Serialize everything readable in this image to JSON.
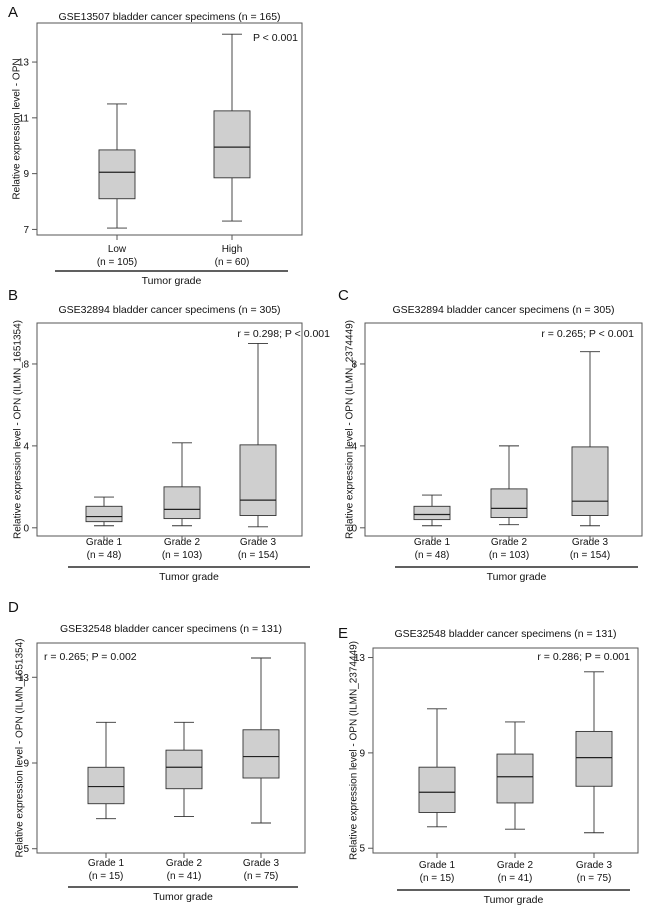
{
  "chart_data": [
    {
      "panel": "A",
      "type": "box",
      "title": "GSE13507 bladder cancer specimens (n = 165)",
      "ylabel": "Relative expression level - OPN",
      "annotation": "P < 0.001",
      "xlabel": "Tumor grade",
      "yticks": [
        7,
        9,
        11,
        13
      ],
      "ylim": [
        6.8,
        14.4
      ],
      "categories": [
        {
          "label": "Low",
          "n": "(n = 105)",
          "min": 7.05,
          "q1": 8.1,
          "median": 9.05,
          "q3": 9.85,
          "max": 11.5
        },
        {
          "label": "High",
          "n": "(n = 60)",
          "min": 7.3,
          "q1": 8.85,
          "median": 9.95,
          "q3": 11.25,
          "max": 14.0
        }
      ]
    },
    {
      "panel": "B",
      "type": "box",
      "title": "GSE32894 bladder cancer specimens (n = 305)",
      "ylabel": "Relative expression level - OPN (ILMN_1651354)",
      "annotation": "r = 0.298; P < 0.001",
      "xlabel": "Tumor grade",
      "yticks": [
        0,
        4,
        8
      ],
      "ylim": [
        -0.4,
        10.0
      ],
      "categories": [
        {
          "label": "Grade 1",
          "n": "(n = 48)",
          "min": 0.1,
          "q1": 0.3,
          "median": 0.55,
          "q3": 1.05,
          "max": 1.5
        },
        {
          "label": "Grade 2",
          "n": "(n = 103)",
          "min": 0.1,
          "q1": 0.45,
          "median": 0.9,
          "q3": 2.0,
          "max": 4.15
        },
        {
          "label": "Grade 3",
          "n": "(n = 154)",
          "min": 0.05,
          "q1": 0.6,
          "median": 1.35,
          "q3": 4.05,
          "max": 9.0
        }
      ]
    },
    {
      "panel": "C",
      "type": "box",
      "title": "GSE32894 bladder cancer specimens (n = 305)",
      "ylabel": "Relative expression level - OPN (ILMN_2374449)",
      "annotation": "r = 0.265; P < 0.001",
      "xlabel": "Tumor grade",
      "yticks": [
        0,
        4,
        8
      ],
      "ylim": [
        -0.4,
        10.0
      ],
      "categories": [
        {
          "label": "Grade 1",
          "n": "(n = 48)",
          "min": 0.1,
          "q1": 0.4,
          "median": 0.65,
          "q3": 1.05,
          "max": 1.6
        },
        {
          "label": "Grade 2",
          "n": "(n = 103)",
          "min": 0.15,
          "q1": 0.5,
          "median": 0.95,
          "q3": 1.9,
          "max": 4.0
        },
        {
          "label": "Grade 3",
          "n": "(n = 154)",
          "min": 0.1,
          "q1": 0.6,
          "median": 1.3,
          "q3": 3.95,
          "max": 8.6
        }
      ]
    },
    {
      "panel": "D",
      "type": "box",
      "title": "GSE32548 bladder cancer specimens (n = 131)",
      "ylabel": "Relative expression level - OPN (ILMN_1651354)",
      "annotation": "r = 0.265; P = 0.002",
      "xlabel": "Tumor grade",
      "yticks": [
        5,
        9,
        13
      ],
      "ylim": [
        4.8,
        14.6
      ],
      "categories": [
        {
          "label": "Grade 1",
          "n": "(n = 15)",
          "min": 6.4,
          "q1": 7.1,
          "median": 7.9,
          "q3": 8.8,
          "max": 10.9
        },
        {
          "label": "Grade 2",
          "n": "(n = 41)",
          "min": 6.5,
          "q1": 7.8,
          "median": 8.8,
          "q3": 9.6,
          "max": 10.9
        },
        {
          "label": "Grade 3",
          "n": "(n = 75)",
          "min": 6.2,
          "q1": 8.3,
          "median": 9.3,
          "q3": 10.55,
          "max": 13.9
        }
      ]
    },
    {
      "panel": "E",
      "type": "box",
      "title": "GSE32548 bladder cancer specimens (n = 131)",
      "ylabel": "Relative expression level - OPN (ILMN_2374449)",
      "annotation": "r = 0.286; P = 0.001",
      "xlabel": "Tumor grade",
      "yticks": [
        5,
        9,
        13
      ],
      "ylim": [
        4.8,
        13.4
      ],
      "categories": [
        {
          "label": "Grade 1",
          "n": "(n = 15)",
          "min": 5.9,
          "q1": 6.5,
          "median": 7.35,
          "q3": 8.4,
          "max": 10.85
        },
        {
          "label": "Grade 2",
          "n": "(n = 41)",
          "min": 5.8,
          "q1": 6.9,
          "median": 8.0,
          "q3": 8.95,
          "max": 10.3
        },
        {
          "label": "Grade 3",
          "n": "(n = 75)",
          "min": 5.65,
          "q1": 7.6,
          "median": 8.8,
          "q3": 9.9,
          "max": 12.4
        }
      ]
    }
  ]
}
